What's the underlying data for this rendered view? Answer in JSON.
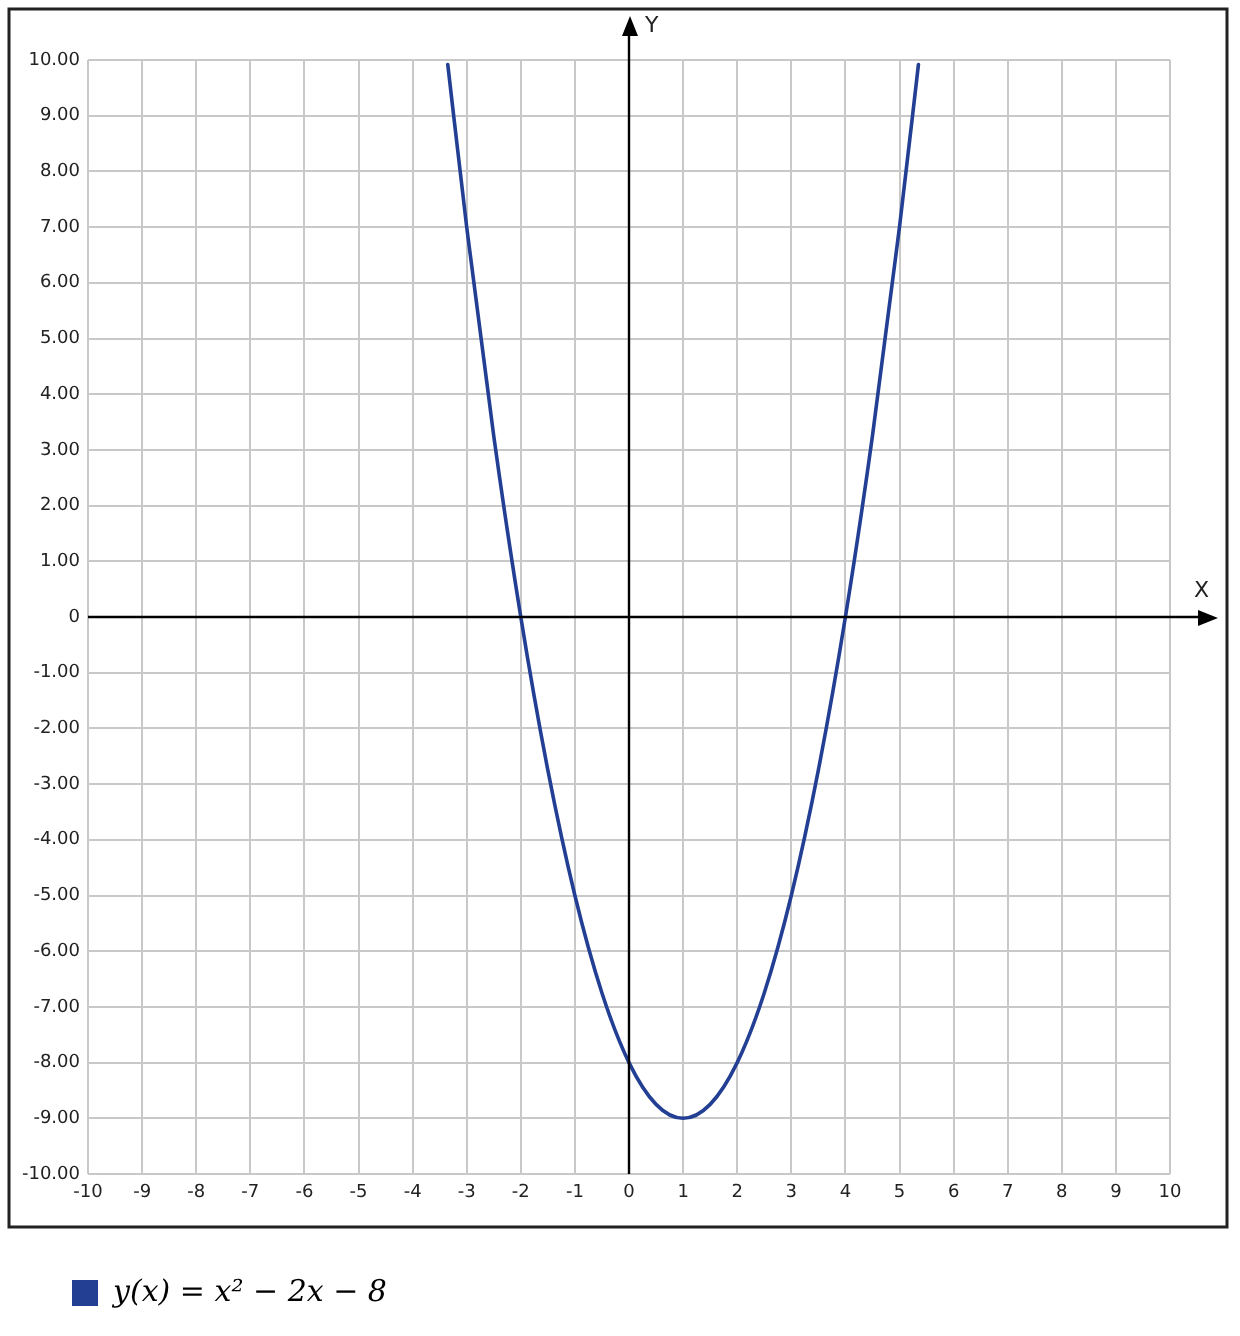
{
  "chart_data": {
    "type": "line",
    "xlabel": "X",
    "ylabel": "Y",
    "xlim": [
      -10,
      10
    ],
    "ylim": [
      -10,
      10
    ],
    "xticks": [
      -10,
      -9,
      -8,
      -7,
      -6,
      -5,
      -4,
      -3,
      -2,
      -1,
      0,
      1,
      2,
      3,
      4,
      5,
      6,
      7,
      8,
      9,
      10
    ],
    "yticks": [
      {
        "value": 10,
        "label": "10.00"
      },
      {
        "value": 9,
        "label": "9.00"
      },
      {
        "value": 8,
        "label": "8.00"
      },
      {
        "value": 7,
        "label": "7.00"
      },
      {
        "value": 6,
        "label": "6.00"
      },
      {
        "value": 5,
        "label": "5.00"
      },
      {
        "value": 4,
        "label": "4.00"
      },
      {
        "value": 3,
        "label": "3.00"
      },
      {
        "value": 2,
        "label": "2.00"
      },
      {
        "value": 1,
        "label": "1.00"
      },
      0,
      {
        "value": -1,
        "label": "-1.00"
      },
      {
        "value": -2,
        "label": "-2.00"
      },
      {
        "value": -3,
        "label": "-3.00"
      },
      {
        "value": -4,
        "label": "-4.00"
      },
      {
        "value": -5,
        "label": "-5.00"
      },
      {
        "value": -6,
        "label": "-6.00"
      },
      {
        "value": -7,
        "label": "-7.00"
      },
      {
        "value": -8,
        "label": "-8.00"
      },
      {
        "value": -9,
        "label": "-9.00"
      },
      {
        "value": -10,
        "label": "-10.00"
      }
    ],
    "series": [
      {
        "name": "y(x) = x² − 2x − 8",
        "color": "#233f94",
        "x": [
          -3.35,
          -3,
          -2.5,
          -2,
          -1.5,
          -1,
          -0.5,
          0,
          0.5,
          1,
          1.5,
          2,
          2.5,
          3,
          3.5,
          4,
          4.5,
          5,
          5.35
        ],
        "values": [
          9.92,
          7,
          3.25,
          0,
          -2.75,
          -5,
          -6.75,
          -8,
          -8.75,
          -9,
          -8.75,
          -8,
          -6.75,
          -5,
          -2.75,
          0,
          3.25,
          7,
          9.92
        ]
      }
    ],
    "grid": true,
    "legend": "bottom",
    "marker": "none",
    "line_style": "solid"
  }
}
